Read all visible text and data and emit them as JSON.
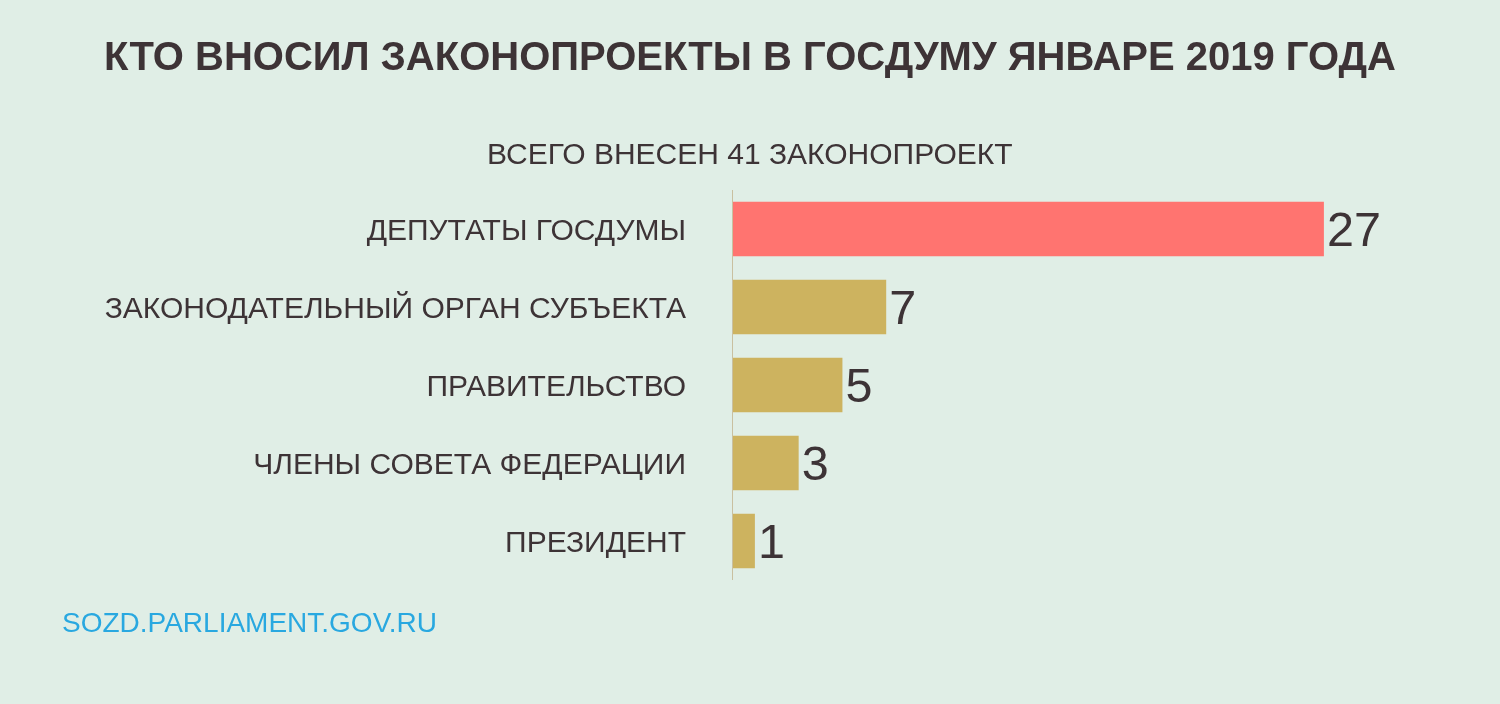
{
  "chart_data": {
    "type": "bar",
    "orientation": "horizontal",
    "title": "КТО ВНОСИЛ ЗАКОНОПРОЕКТЫ В ГОСДУМУ ЯНВАРЕ 2019 ГОДА",
    "subtitle": "ВСЕГО ВНЕСЕН 41 ЗАКОНОПРОЕКТ",
    "categories": [
      "ДЕПУТАТЫ ГОСДУМЫ",
      "ЗАКОНОДАТЕЛЬНЫЙ ОРГАН СУБЪЕКТА",
      "ПРАВИТЕЛЬСТВО",
      "ЧЛЕНЫ СОВЕТА ФЕДЕРАЦИИ",
      "ПРЕЗИДЕНТ"
    ],
    "values": [
      27,
      7,
      5,
      3,
      1
    ],
    "colors": [
      "#ff7470",
      "#cdb35f",
      "#cdb35f",
      "#cdb35f",
      "#cdb35f"
    ],
    "data_labels": true,
    "tick_labels": "y",
    "annotations": [
      "SOZD.PARLIAMENT.GOV.RU"
    ]
  }
}
